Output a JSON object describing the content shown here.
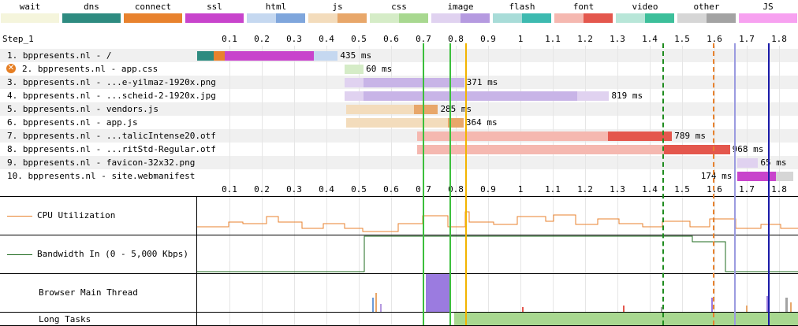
{
  "legend": [
    {
      "label": "wait",
      "name": "wait",
      "light": "#f5f5dc",
      "dark": "#f5f5dc"
    },
    {
      "label": "dns",
      "name": "dns",
      "light": "#2e8b80",
      "dark": "#2e8b80"
    },
    {
      "label": "connect",
      "name": "connect",
      "light": "#e8822e",
      "dark": "#e8822e"
    },
    {
      "label": "ssl",
      "name": "ssl",
      "light": "#c844cc",
      "dark": "#c844cc"
    },
    {
      "label": "html",
      "name": "html",
      "light": "#c5d8f0",
      "dark": "#7fa6dc"
    },
    {
      "label": "js",
      "name": "js",
      "light": "#f3dcbc",
      "dark": "#e8a76a"
    },
    {
      "label": "css",
      "name": "css",
      "light": "#d5ecc7",
      "dark": "#a8d890"
    },
    {
      "label": "image",
      "name": "image",
      "light": "#e0d2f0",
      "dark": "#b59ae0"
    },
    {
      "label": "flash",
      "name": "flash",
      "light": "#a8dcd8",
      "dark": "#3dbab0"
    },
    {
      "label": "font",
      "name": "font",
      "light": "#f5b8b0",
      "dark": "#e4574d"
    },
    {
      "label": "video",
      "name": "video",
      "light": "#b8e6d8",
      "dark": "#3cbf9a"
    },
    {
      "label": "other",
      "name": "other",
      "light": "#d6d6d6",
      "dark": "#a3a3a3"
    },
    {
      "label": "JS Execution",
      "name": "js-execution",
      "light": "#f7a1f0",
      "dark": "#f7a1f0"
    }
  ],
  "step_label": "Step_1",
  "ticks": [
    "0.1",
    "0.2",
    "0.3",
    "0.4",
    "0.5",
    "0.6",
    "0.7",
    "0.8",
    "0.9",
    "1",
    "1.1",
    "1.2",
    "1.3",
    "1.4",
    "1.5",
    "1.6",
    "1.7",
    "1.8"
  ],
  "requests": [
    {
      "label": "1. bppresents.nl - /",
      "time": "435 ms",
      "type": "html",
      "start": 0.0,
      "end": 0.435,
      "error": false
    },
    {
      "label": "2. bppresents.nl - app.css",
      "time": "60 ms",
      "type": "css",
      "start": 0.455,
      "end": 0.515,
      "error": true
    },
    {
      "label": "3. bppresents.nl - ...e-yilmaz-1920x.png",
      "time": "371 ms",
      "type": "image",
      "start": 0.455,
      "end": 0.826,
      "error": false
    },
    {
      "label": "4. bppresents.nl - ...scheid-2-1920x.jpg",
      "time": "819 ms",
      "type": "image",
      "start": 0.455,
      "end": 1.274,
      "error": false
    },
    {
      "label": "5. bppresents.nl - vendors.js",
      "time": "285 ms",
      "type": "js",
      "start": 0.46,
      "end": 0.745,
      "error": false
    },
    {
      "label": "6. bppresents.nl - app.js",
      "time": "364 ms",
      "type": "js",
      "start": 0.46,
      "end": 0.824,
      "error": false
    },
    {
      "label": "7. bppresents.nl - ...talicIntense20.otf",
      "time": "789 ms",
      "type": "font",
      "start": 0.68,
      "end": 1.469,
      "error": false
    },
    {
      "label": "8. bppresents.nl - ...ritStd-Regular.otf",
      "time": "968 ms",
      "type": "font",
      "start": 0.68,
      "end": 1.648,
      "error": false
    },
    {
      "label": "9. bppresents.nl - favicon-32x32.png",
      "time": "65 ms",
      "type": "image",
      "start": 1.67,
      "end": 1.735,
      "error": false
    },
    {
      "label": "10. bppresents.nl - site.webmanifest",
      "time": "174 ms",
      "type": "other",
      "start": 1.67,
      "end": 1.844,
      "error": false
    }
  ],
  "panels": {
    "cpu": "CPU Utilization",
    "bandwidth": "Bandwidth In (0 - 5,000 Kbps)",
    "main_thread": "Browser Main Thread",
    "long_tasks": "Long Tasks"
  }
}
